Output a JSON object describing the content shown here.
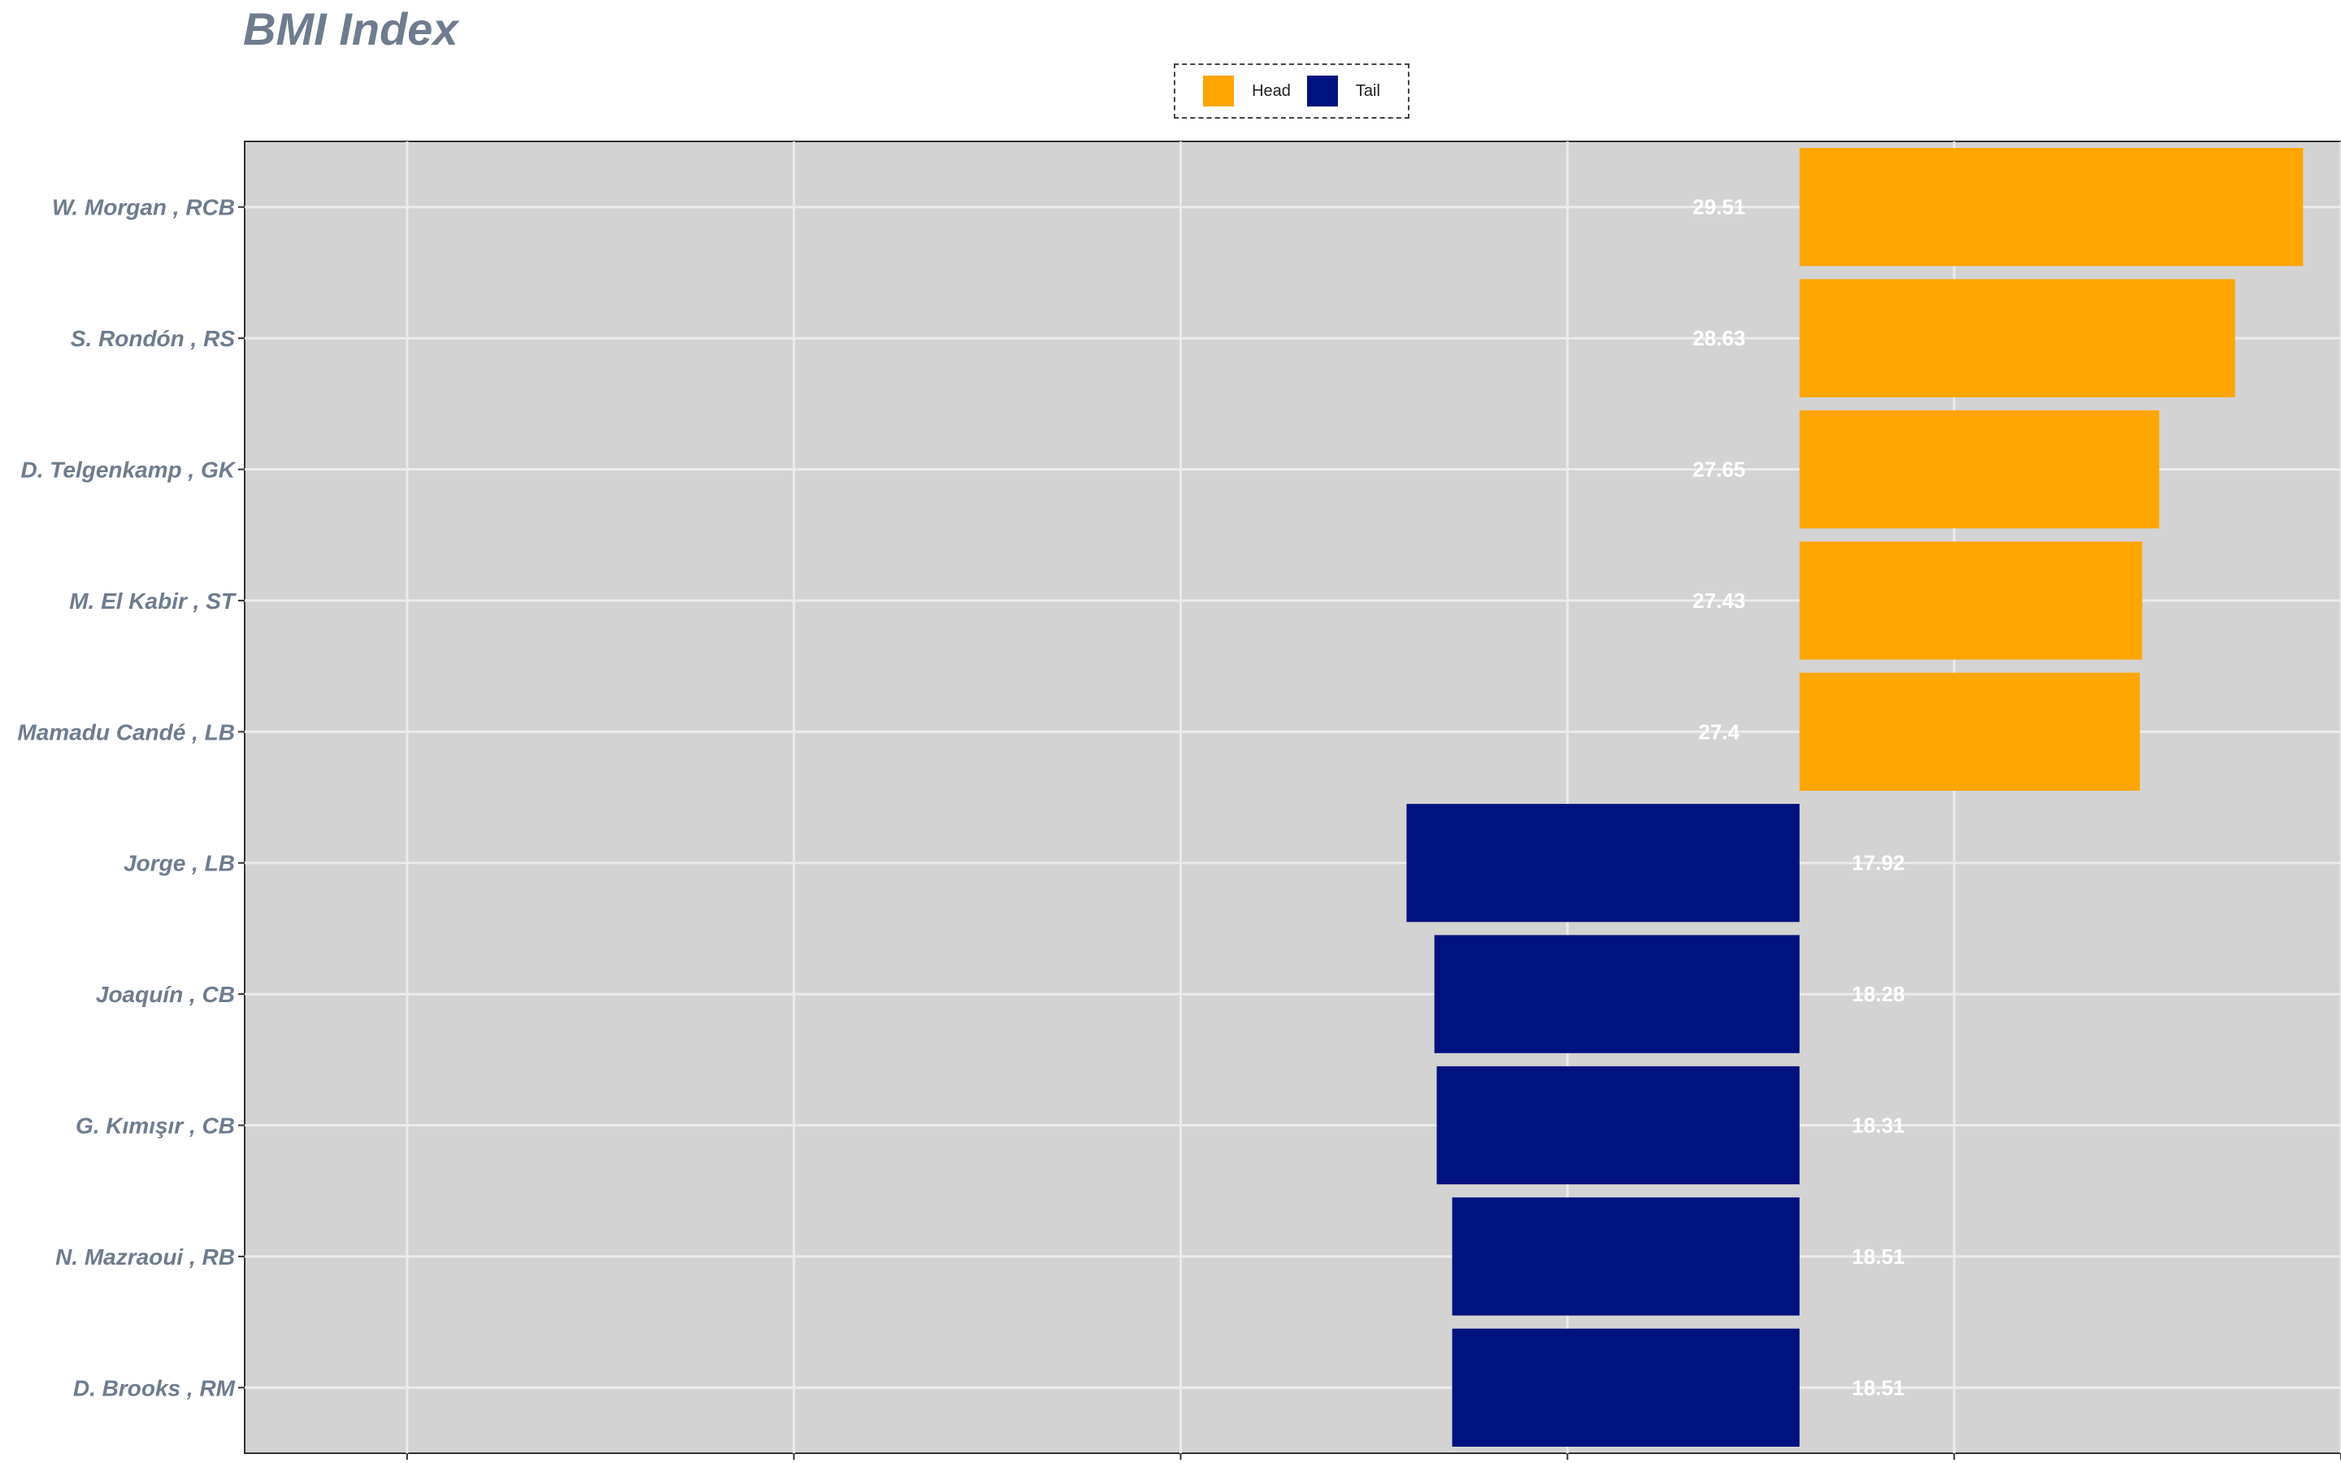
{
  "chart_data": {
    "type": "bar",
    "orientation": "horizontal",
    "title": "BMI Index",
    "xlabel": "",
    "ylabel": "",
    "xlim": [
      -20.1,
      7.0
    ],
    "baseline": 23.0,
    "grid": true,
    "legend_position": "top-center",
    "colors": {
      "Head": "#ffa500",
      "Tail": "#00127f",
      "panel": "#d3d3d3",
      "grid": "#ebebeb",
      "label": "#6e7c8e",
      "bar_label": "#ffffff"
    },
    "series": [
      {
        "name": "Head",
        "color": "#ffa500"
      },
      {
        "name": "Tail",
        "color": "#00127f"
      }
    ],
    "bars": [
      {
        "category": "W. Morgan , RCB",
        "value": 29.51,
        "label": "29.51",
        "group": "Head"
      },
      {
        "category": "S. Rondón , RS",
        "value": 28.63,
        "label": "28.63",
        "group": "Head"
      },
      {
        "category": "D. Telgenkamp , GK",
        "value": 27.65,
        "label": "27.65",
        "group": "Head"
      },
      {
        "category": "M. El Kabir , ST",
        "value": 27.43,
        "label": "27.43",
        "group": "Head"
      },
      {
        "category": "Mamadu Candé , LB",
        "value": 27.4,
        "label": "27.4",
        "group": "Head"
      },
      {
        "category": "Jorge , LB",
        "value": 17.92,
        "label": "17.92",
        "group": "Tail"
      },
      {
        "category": "Joaquín , CB",
        "value": 18.28,
        "label": "18.28",
        "group": "Tail"
      },
      {
        "category": "G. Kımışır , CB",
        "value": 18.31,
        "label": "18.31",
        "group": "Tail"
      },
      {
        "category": "N. Mazraoui , RB",
        "value": 18.51,
        "label": "18.51",
        "group": "Tail"
      },
      {
        "category": "D. Brooks , RM",
        "value": 18.51,
        "label": "18.51",
        "group": "Tail"
      }
    ]
  }
}
